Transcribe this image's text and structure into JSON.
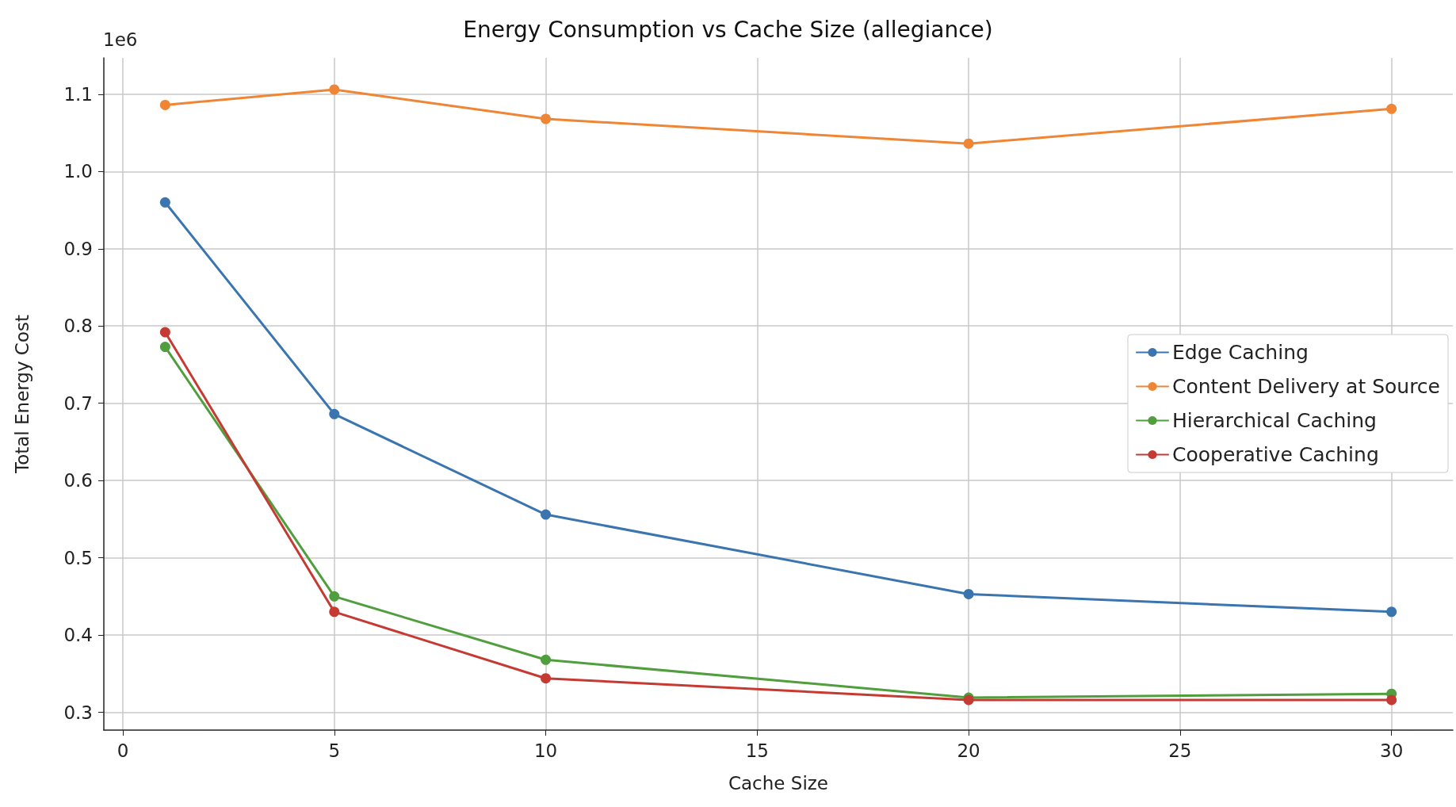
{
  "chart_data": {
    "type": "line",
    "title": "Energy Consumption vs Cache Size (allegiance)",
    "xlabel": "Cache Size",
    "ylabel": "Total Energy Cost",
    "annotations": [
      "1e6"
    ],
    "x": [
      1,
      5,
      10,
      20,
      30
    ],
    "series": [
      {
        "name": "Edge Caching",
        "color": "#3b75af",
        "values": [
          0.96,
          0.686,
          0.556,
          0.453,
          0.43
        ]
      },
      {
        "name": "Content Delivery at Source",
        "color": "#ef8636",
        "values": [
          1.086,
          1.106,
          1.068,
          1.036,
          1.081
        ]
      },
      {
        "name": "Hierarchical Caching",
        "color": "#519e3e",
        "values": [
          0.773,
          0.45,
          0.368,
          0.319,
          0.324
        ]
      },
      {
        "name": "Cooperative Caching",
        "color": "#c53a32",
        "values": [
          0.792,
          0.43,
          0.344,
          0.316,
          0.316
        ]
      }
    ],
    "xlim": [
      -0.45,
      31.45
    ],
    "xticks": [
      0,
      5,
      10,
      15,
      20,
      25,
      30
    ],
    "ylim": [
      0.277,
      1.147
    ],
    "yticks": [
      {
        "value": 0.3,
        "label": "0.3"
      },
      {
        "value": 0.4,
        "label": "0.4"
      },
      {
        "value": 0.5,
        "label": "0.5"
      },
      {
        "value": 0.6,
        "label": "0.6"
      },
      {
        "value": 0.7,
        "label": "0.7"
      },
      {
        "value": 0.8,
        "label": "0.8"
      },
      {
        "value": 0.9,
        "label": "0.9"
      },
      {
        "value": 1.0,
        "label": "1.0"
      },
      {
        "value": 1.1,
        "label": "1.1"
      }
    ],
    "grid": true,
    "legend": "right",
    "marker": "circle",
    "line_style": "solid"
  }
}
